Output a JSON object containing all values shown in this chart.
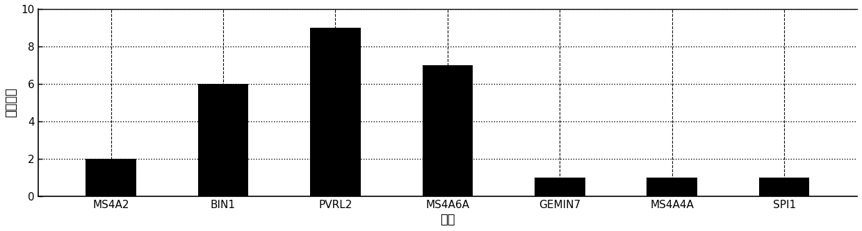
{
  "categories": [
    "MS4A2",
    "BIN1",
    "PVRL2",
    "MS4A6A",
    "GEMIN7",
    "MS4A4A",
    "SPI1"
  ],
  "values": [
    2,
    6,
    9,
    7,
    1,
    1,
    1
  ],
  "bar_color": "#000000",
  "xlabel": "基因",
  "ylabel": "放映次数",
  "ylim": [
    0,
    10
  ],
  "yticks": [
    0,
    2,
    4,
    6,
    8,
    10
  ],
  "background_color": "#ffffff",
  "xlabel_fontsize": 13,
  "ylabel_fontsize": 13,
  "tick_fontsize": 11,
  "bar_width": 0.45
}
